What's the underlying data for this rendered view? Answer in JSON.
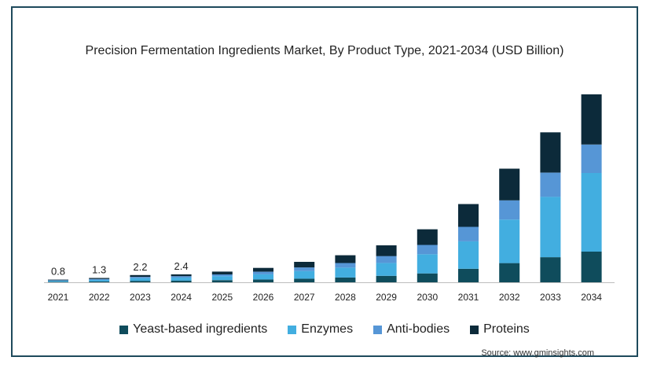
{
  "chart_data": {
    "type": "bar",
    "stacked": true,
    "title": "Precision Fermentation Ingredients Market, By Product Type, 2021-2034 (USD Billion)",
    "xlabel": "",
    "ylabel": "",
    "categories": [
      "2021",
      "2022",
      "2023",
      "2024",
      "2025",
      "2026",
      "2027",
      "2028",
      "2029",
      "2030",
      "2031",
      "2032",
      "2033",
      "2034"
    ],
    "data_labels": [
      "0.8",
      "1.3",
      "2.2",
      "2.4",
      "",
      "",
      "",
      "",
      "",
      "",
      "",
      "",
      "",
      ""
    ],
    "series": [
      {
        "name": "Yeast-based ingredients",
        "color": "#0f4c5c",
        "values": [
          0.15,
          0.25,
          0.45,
          0.5,
          0.65,
          0.85,
          1.1,
          1.45,
          1.95,
          2.7,
          4.1,
          5.8,
          7.6,
          9.3
        ]
      },
      {
        "name": "Enzymes",
        "color": "#42aee0",
        "values": [
          0.3,
          0.5,
          0.8,
          0.9,
          1.2,
          1.6,
          2.3,
          3.0,
          3.9,
          5.8,
          8.3,
          13.2,
          18.3,
          23.8
        ]
      },
      {
        "name": "Anti-bodies",
        "color": "#5696d6",
        "values": [
          0.15,
          0.25,
          0.4,
          0.45,
          0.55,
          0.75,
          1.1,
          1.4,
          2.1,
          2.8,
          4.4,
          5.8,
          7.3,
          8.6
        ]
      },
      {
        "name": "Proteins",
        "color": "#0c2a3a",
        "values": [
          0.2,
          0.3,
          0.55,
          0.55,
          0.85,
          1.15,
          1.7,
          2.35,
          3.25,
          4.75,
          6.9,
          9.6,
          12.2,
          15.2
        ]
      }
    ],
    "ylim": [
      0,
      60
    ],
    "axis_y_visible": false,
    "grid": false,
    "legend_position": "bottom"
  },
  "source": "Source: www.gminsights.com"
}
